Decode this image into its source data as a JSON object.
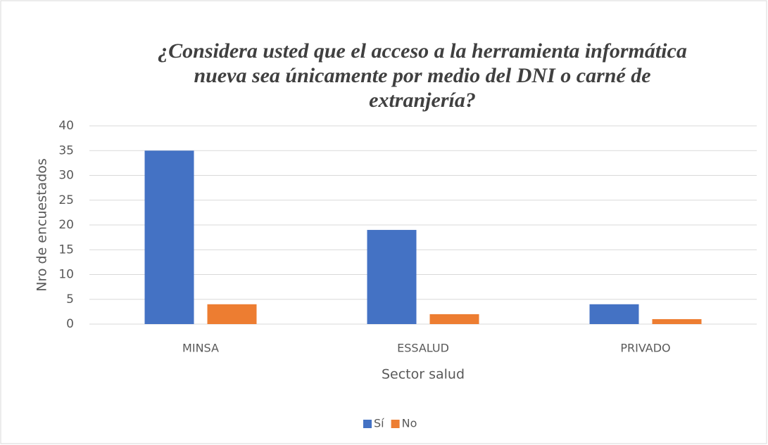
{
  "chart_data": {
    "type": "bar",
    "title": "¿Considera usted que el acceso a la herramienta informática nueva sea únicamente por medio del DNI o carné de extranjería?",
    "x_label": "Sector salud",
    "y_label": "Nro de encuestados",
    "categories": [
      "MINSA",
      "ESSALUD",
      "PRIVADO"
    ],
    "series": [
      {
        "name": "Sí",
        "color": "#4472c4",
        "values": [
          35,
          19,
          4
        ]
      },
      {
        "name": "No",
        "color": "#ed7d31",
        "values": [
          4,
          2,
          1
        ]
      }
    ],
    "ylim": [
      0,
      40
    ],
    "yticks": [
      0,
      5,
      10,
      15,
      20,
      25,
      30,
      35,
      40
    ],
    "grid": true,
    "legend": "bottom"
  }
}
